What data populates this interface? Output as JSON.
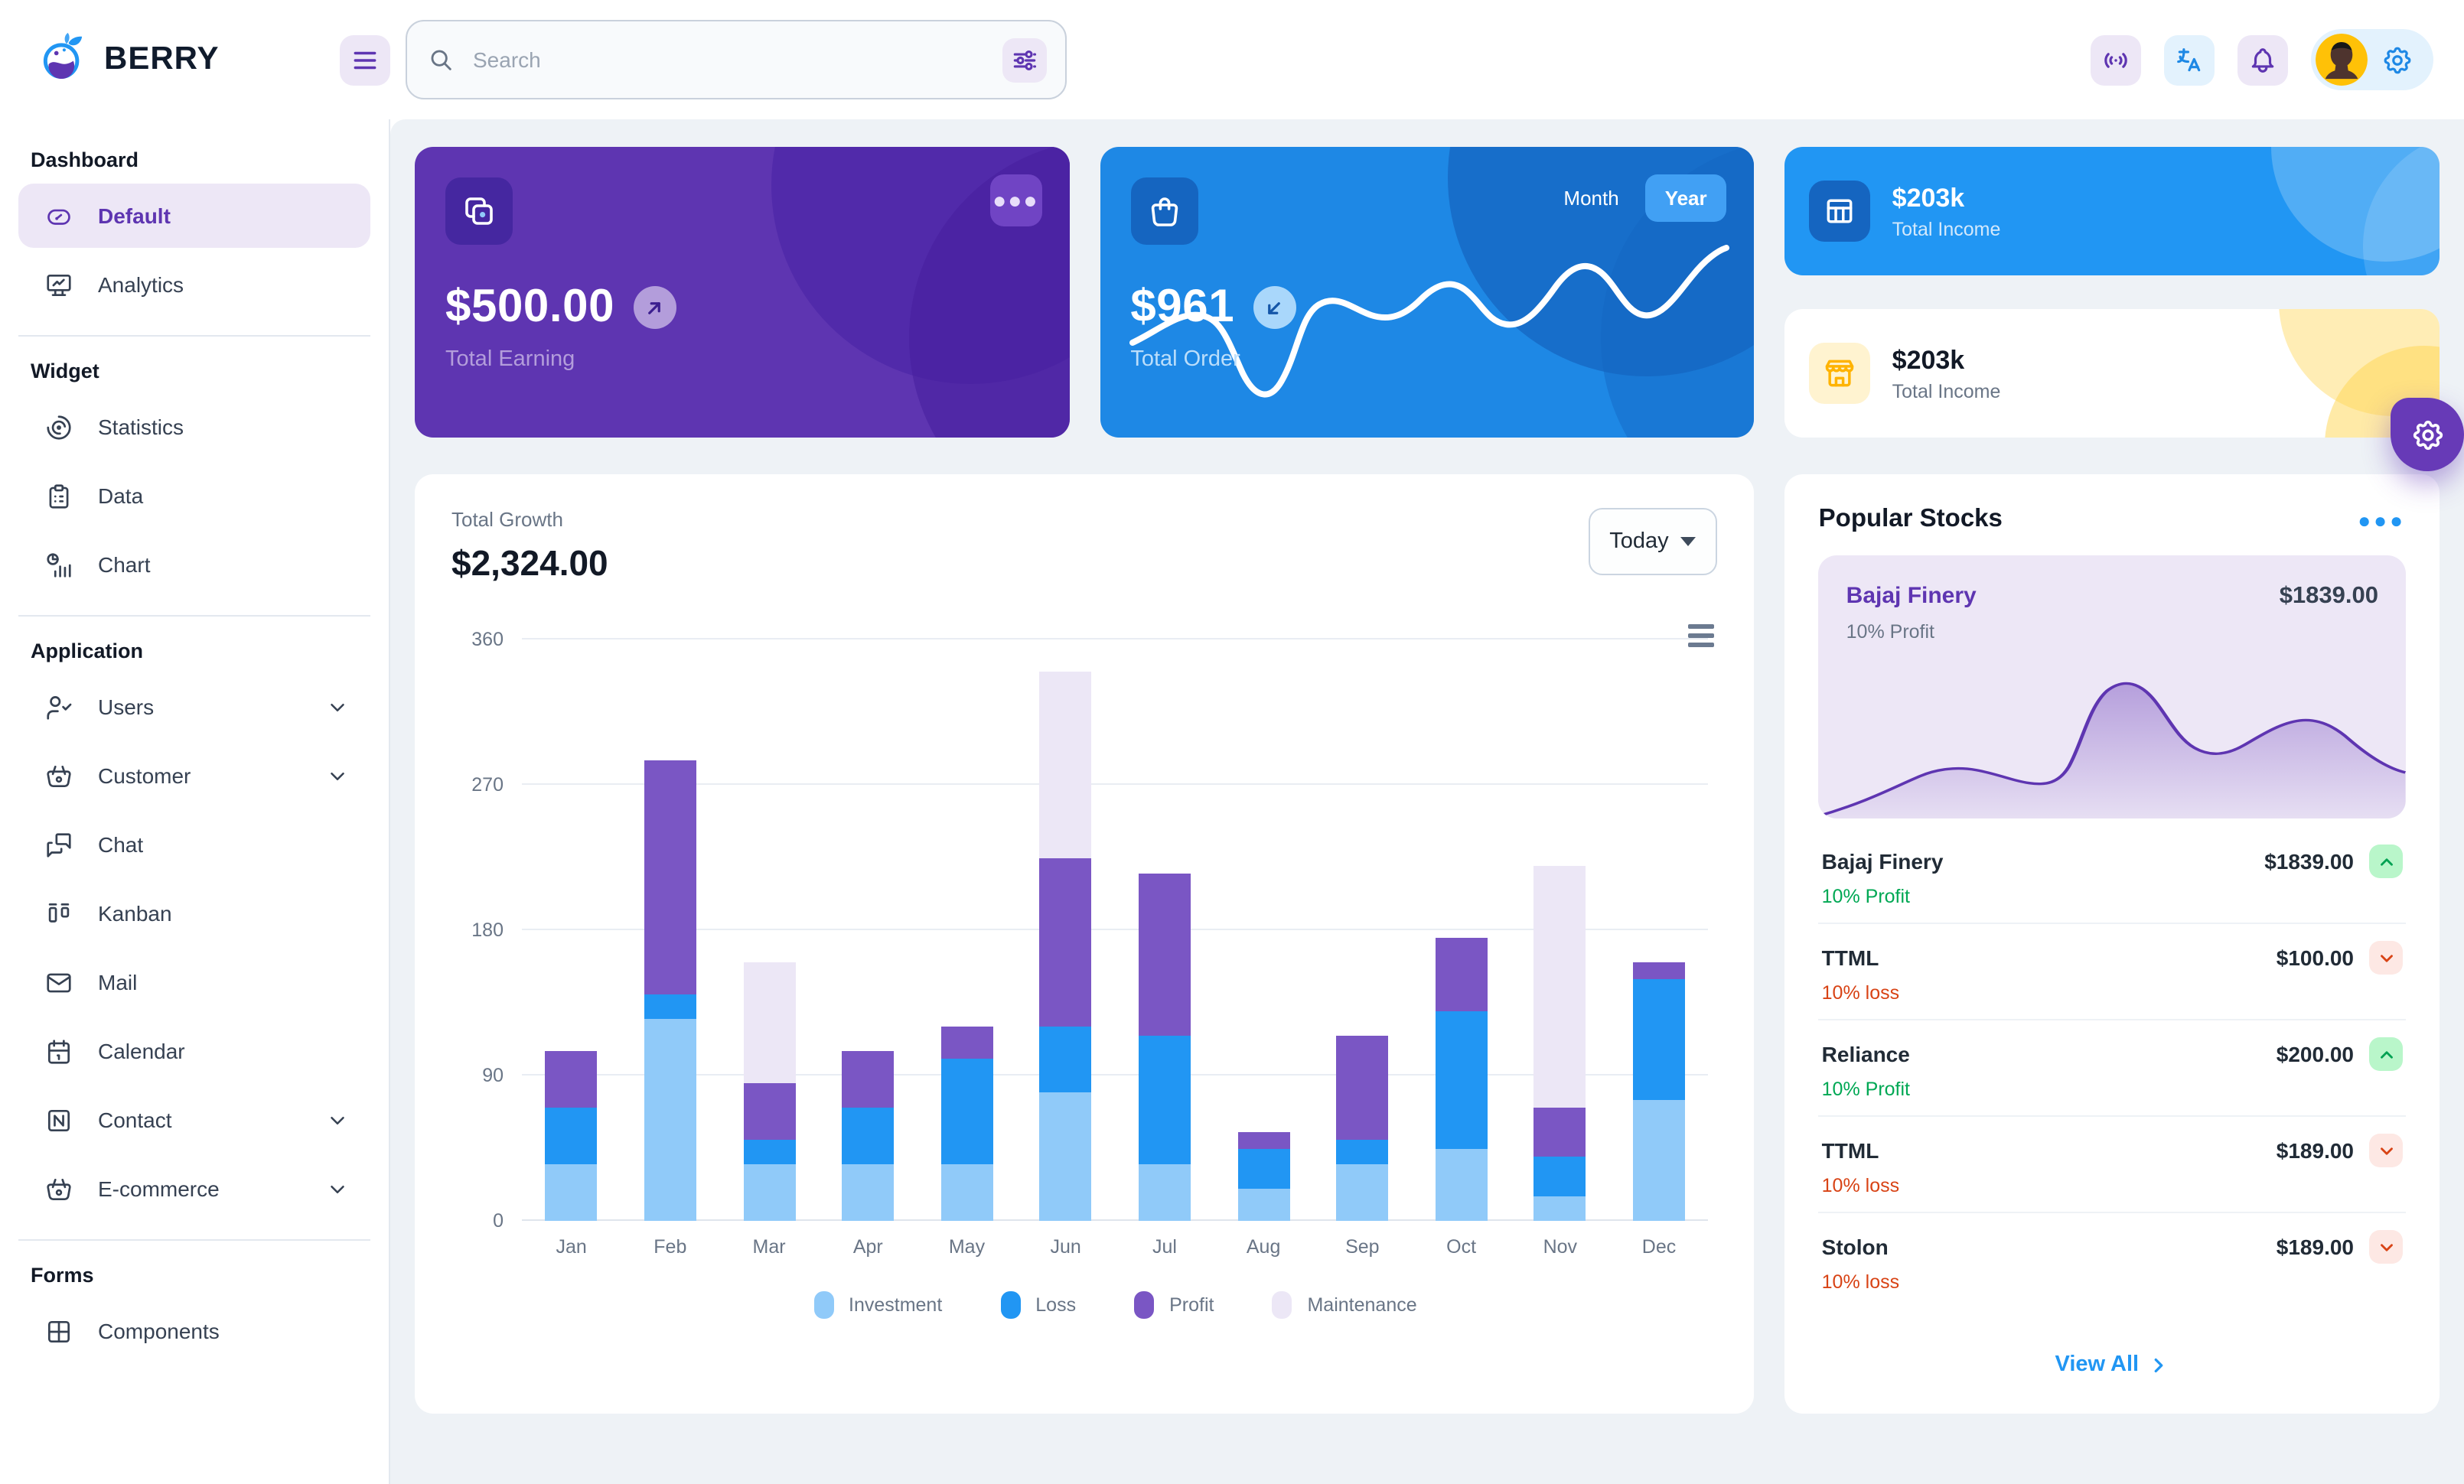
{
  "header": {
    "logo_text": "BERRY",
    "search_placeholder": "Search"
  },
  "sidebar": {
    "sections": [
      {
        "title": "Dashboard",
        "items": [
          {
            "label": "Default",
            "icon": "gauge-icon",
            "active": true
          },
          {
            "label": "Analytics",
            "icon": "analytics-icon"
          }
        ]
      },
      {
        "title": "Widget",
        "items": [
          {
            "label": "Statistics",
            "icon": "statistics-icon"
          },
          {
            "label": "Data",
            "icon": "data-icon"
          },
          {
            "label": "Chart",
            "icon": "chart-icon"
          }
        ]
      },
      {
        "title": "Application",
        "items": [
          {
            "label": "Users",
            "icon": "users-icon",
            "chevron": true
          },
          {
            "label": "Customer",
            "icon": "basket-icon",
            "chevron": true
          },
          {
            "label": "Chat",
            "icon": "chat-icon"
          },
          {
            "label": "Kanban",
            "icon": "kanban-icon"
          },
          {
            "label": "Mail",
            "icon": "mail-icon"
          },
          {
            "label": "Calendar",
            "icon": "calendar-icon"
          },
          {
            "label": "Contact",
            "icon": "contact-icon",
            "chevron": true
          },
          {
            "label": "E-commerce",
            "icon": "basket-icon",
            "chevron": true
          }
        ]
      },
      {
        "title": "Forms",
        "items": [
          {
            "label": "Components",
            "icon": "components-icon",
            "partial": true
          }
        ]
      }
    ]
  },
  "cards": {
    "total_earning": {
      "amount": "$500.00",
      "label": "Total Earning"
    },
    "total_order": {
      "amount": "$961",
      "label": "Total Order",
      "month_label": "Month",
      "year_label": "Year",
      "active_toggle": "Year"
    },
    "income_primary": {
      "amount": "$203k",
      "label": "Total Income"
    },
    "income_warning": {
      "amount": "$203k",
      "label": "Total Income"
    }
  },
  "growth": {
    "title": "Total Growth",
    "amount": "$2,324.00",
    "period": "Today"
  },
  "chart_data": {
    "type": "bar",
    "stacked": true,
    "title": "Total Growth",
    "categories": [
      "Jan",
      "Feb",
      "Mar",
      "Apr",
      "May",
      "Jun",
      "Jul",
      "Aug",
      "Sep",
      "Oct",
      "Nov",
      "Dec"
    ],
    "series": [
      {
        "name": "Investment",
        "color": "#90caf9",
        "values": [
          35,
          125,
          35,
          35,
          35,
          80,
          35,
          20,
          35,
          45,
          15,
          75
        ]
      },
      {
        "name": "Loss",
        "color": "#2196f3",
        "values": [
          35,
          15,
          15,
          35,
          65,
          40,
          80,
          25,
          15,
          85,
          25,
          75
        ]
      },
      {
        "name": "Profit",
        "color": "#7a56c4",
        "values": [
          35,
          145,
          35,
          35,
          20,
          105,
          100,
          10,
          65,
          45,
          30,
          10
        ]
      },
      {
        "name": "Maintenance",
        "color": "#ece7f6",
        "values": [
          0,
          0,
          75,
          0,
          0,
          115,
          0,
          0,
          0,
          0,
          150,
          0
        ]
      }
    ],
    "ylim": [
      0,
      360
    ],
    "yticks": [
      0,
      90,
      180,
      270,
      360
    ],
    "legend_position": "bottom",
    "grid": true
  },
  "stocks": {
    "title": "Popular Stocks",
    "featured": {
      "name": "Bajaj Finery",
      "change": "10% Profit",
      "price": "$1839.00"
    },
    "items": [
      {
        "name": "Bajaj Finery",
        "price": "$1839.00",
        "change": "10% Profit",
        "direction": "up"
      },
      {
        "name": "TTML",
        "price": "$100.00",
        "change": "10% loss",
        "direction": "down"
      },
      {
        "name": "Reliance",
        "price": "$200.00",
        "change": "10% Profit",
        "direction": "up"
      },
      {
        "name": "TTML",
        "price": "$189.00",
        "change": "10% loss",
        "direction": "down"
      },
      {
        "name": "Stolon",
        "price": "$189.00",
        "change": "10% loss",
        "direction": "down"
      }
    ],
    "view_all": "View All"
  },
  "colors": {
    "primary": "#2196f3",
    "primary_dark": "#1e88e5",
    "secondary": "#673ab7",
    "secondary_dark": "#5e35b1",
    "success": "#00a854",
    "error": "#d84315",
    "warning": "#ffc107",
    "badge_up_bg": "#b9f6ca",
    "badge_down_bg": "#fde8e4"
  }
}
